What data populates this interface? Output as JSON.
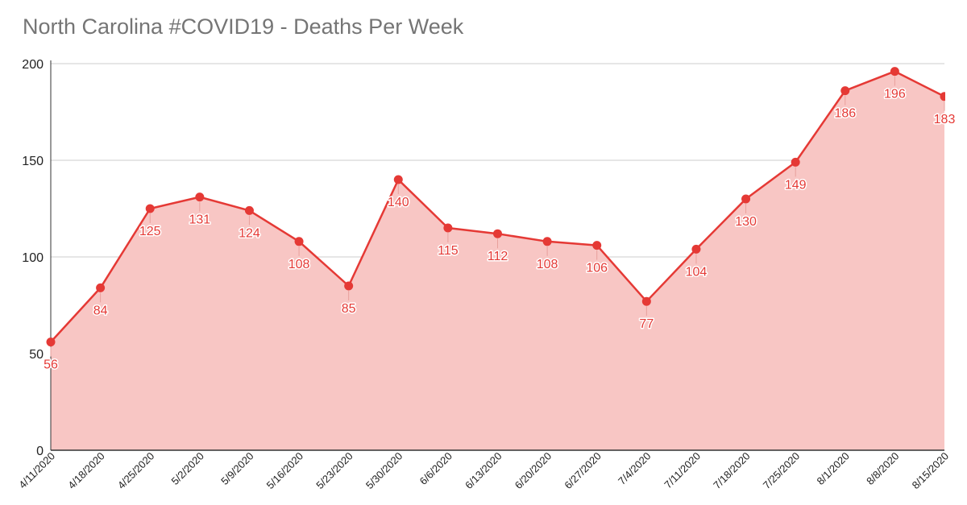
{
  "chart_data": {
    "type": "area",
    "title": "North Carolina #COVID19 - Deaths Per Week",
    "xlabel": "",
    "ylabel": "",
    "ylim": [
      0,
      200
    ],
    "yticks": [
      "0",
      "50",
      "100",
      "150",
      "200"
    ],
    "grid": true,
    "legend": "none",
    "categories": [
      "4/11/2020",
      "4/18/2020",
      "4/25/2020",
      "5/2/2020",
      "5/9/2020",
      "5/16/2020",
      "5/23/2020",
      "5/30/2020",
      "6/6/2020",
      "6/13/2020",
      "6/20/2020",
      "6/27/2020",
      "7/4/2020",
      "7/11/2020",
      "7/18/2020",
      "7/25/2020",
      "8/1/2020",
      "8/8/2020",
      "8/15/2020"
    ],
    "series": [
      {
        "name": "Deaths Per Week",
        "values": [
          56,
          84,
          125,
          131,
          124,
          108,
          85,
          140,
          115,
          112,
          108,
          106,
          77,
          104,
          130,
          149,
          186,
          196,
          183
        ],
        "color": "#e53935",
        "fill_color": "#f8c6c4"
      }
    ]
  }
}
